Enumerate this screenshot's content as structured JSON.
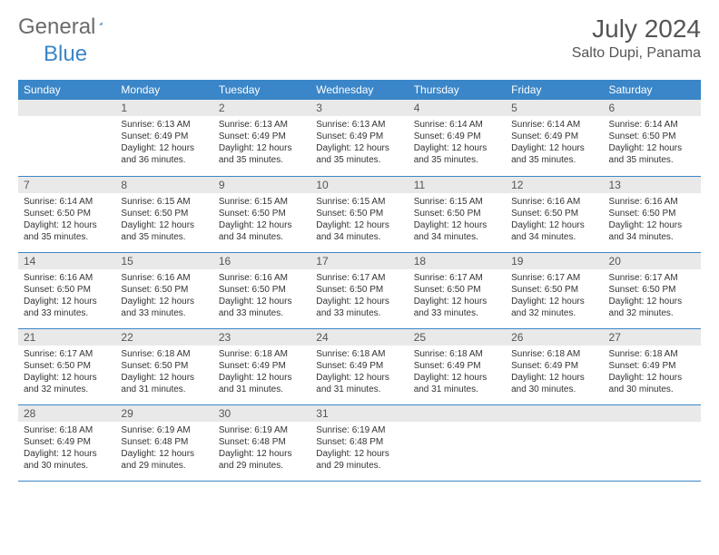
{
  "logo": {
    "general": "General",
    "blue": "Blue",
    "triangle_color": "#3a86c8"
  },
  "header": {
    "month_title": "July 2024",
    "location": "Salto Dupi, Panama"
  },
  "style": {
    "header_bg": "#3a86c8",
    "header_text": "#ffffff",
    "daynum_bg": "#e9e9e9",
    "border_color": "#3a86c8",
    "body_text": "#333333",
    "title_text": "#555555",
    "cell_font_size": 10,
    "daynum_font_size": 12,
    "dayheader_font_size": 12
  },
  "day_names": [
    "Sunday",
    "Monday",
    "Tuesday",
    "Wednesday",
    "Thursday",
    "Friday",
    "Saturday"
  ],
  "weeks": [
    [
      {
        "day": "",
        "sunrise": "",
        "sunset": "",
        "daylight": ""
      },
      {
        "day": "1",
        "sunrise": "Sunrise: 6:13 AM",
        "sunset": "Sunset: 6:49 PM",
        "daylight": "Daylight: 12 hours and 36 minutes."
      },
      {
        "day": "2",
        "sunrise": "Sunrise: 6:13 AM",
        "sunset": "Sunset: 6:49 PM",
        "daylight": "Daylight: 12 hours and 35 minutes."
      },
      {
        "day": "3",
        "sunrise": "Sunrise: 6:13 AM",
        "sunset": "Sunset: 6:49 PM",
        "daylight": "Daylight: 12 hours and 35 minutes."
      },
      {
        "day": "4",
        "sunrise": "Sunrise: 6:14 AM",
        "sunset": "Sunset: 6:49 PM",
        "daylight": "Daylight: 12 hours and 35 minutes."
      },
      {
        "day": "5",
        "sunrise": "Sunrise: 6:14 AM",
        "sunset": "Sunset: 6:49 PM",
        "daylight": "Daylight: 12 hours and 35 minutes."
      },
      {
        "day": "6",
        "sunrise": "Sunrise: 6:14 AM",
        "sunset": "Sunset: 6:50 PM",
        "daylight": "Daylight: 12 hours and 35 minutes."
      }
    ],
    [
      {
        "day": "7",
        "sunrise": "Sunrise: 6:14 AM",
        "sunset": "Sunset: 6:50 PM",
        "daylight": "Daylight: 12 hours and 35 minutes."
      },
      {
        "day": "8",
        "sunrise": "Sunrise: 6:15 AM",
        "sunset": "Sunset: 6:50 PM",
        "daylight": "Daylight: 12 hours and 35 minutes."
      },
      {
        "day": "9",
        "sunrise": "Sunrise: 6:15 AM",
        "sunset": "Sunset: 6:50 PM",
        "daylight": "Daylight: 12 hours and 34 minutes."
      },
      {
        "day": "10",
        "sunrise": "Sunrise: 6:15 AM",
        "sunset": "Sunset: 6:50 PM",
        "daylight": "Daylight: 12 hours and 34 minutes."
      },
      {
        "day": "11",
        "sunrise": "Sunrise: 6:15 AM",
        "sunset": "Sunset: 6:50 PM",
        "daylight": "Daylight: 12 hours and 34 minutes."
      },
      {
        "day": "12",
        "sunrise": "Sunrise: 6:16 AM",
        "sunset": "Sunset: 6:50 PM",
        "daylight": "Daylight: 12 hours and 34 minutes."
      },
      {
        "day": "13",
        "sunrise": "Sunrise: 6:16 AM",
        "sunset": "Sunset: 6:50 PM",
        "daylight": "Daylight: 12 hours and 34 minutes."
      }
    ],
    [
      {
        "day": "14",
        "sunrise": "Sunrise: 6:16 AM",
        "sunset": "Sunset: 6:50 PM",
        "daylight": "Daylight: 12 hours and 33 minutes."
      },
      {
        "day": "15",
        "sunrise": "Sunrise: 6:16 AM",
        "sunset": "Sunset: 6:50 PM",
        "daylight": "Daylight: 12 hours and 33 minutes."
      },
      {
        "day": "16",
        "sunrise": "Sunrise: 6:16 AM",
        "sunset": "Sunset: 6:50 PM",
        "daylight": "Daylight: 12 hours and 33 minutes."
      },
      {
        "day": "17",
        "sunrise": "Sunrise: 6:17 AM",
        "sunset": "Sunset: 6:50 PM",
        "daylight": "Daylight: 12 hours and 33 minutes."
      },
      {
        "day": "18",
        "sunrise": "Sunrise: 6:17 AM",
        "sunset": "Sunset: 6:50 PM",
        "daylight": "Daylight: 12 hours and 33 minutes."
      },
      {
        "day": "19",
        "sunrise": "Sunrise: 6:17 AM",
        "sunset": "Sunset: 6:50 PM",
        "daylight": "Daylight: 12 hours and 32 minutes."
      },
      {
        "day": "20",
        "sunrise": "Sunrise: 6:17 AM",
        "sunset": "Sunset: 6:50 PM",
        "daylight": "Daylight: 12 hours and 32 minutes."
      }
    ],
    [
      {
        "day": "21",
        "sunrise": "Sunrise: 6:17 AM",
        "sunset": "Sunset: 6:50 PM",
        "daylight": "Daylight: 12 hours and 32 minutes."
      },
      {
        "day": "22",
        "sunrise": "Sunrise: 6:18 AM",
        "sunset": "Sunset: 6:50 PM",
        "daylight": "Daylight: 12 hours and 31 minutes."
      },
      {
        "day": "23",
        "sunrise": "Sunrise: 6:18 AM",
        "sunset": "Sunset: 6:49 PM",
        "daylight": "Daylight: 12 hours and 31 minutes."
      },
      {
        "day": "24",
        "sunrise": "Sunrise: 6:18 AM",
        "sunset": "Sunset: 6:49 PM",
        "daylight": "Daylight: 12 hours and 31 minutes."
      },
      {
        "day": "25",
        "sunrise": "Sunrise: 6:18 AM",
        "sunset": "Sunset: 6:49 PM",
        "daylight": "Daylight: 12 hours and 31 minutes."
      },
      {
        "day": "26",
        "sunrise": "Sunrise: 6:18 AM",
        "sunset": "Sunset: 6:49 PM",
        "daylight": "Daylight: 12 hours and 30 minutes."
      },
      {
        "day": "27",
        "sunrise": "Sunrise: 6:18 AM",
        "sunset": "Sunset: 6:49 PM",
        "daylight": "Daylight: 12 hours and 30 minutes."
      }
    ],
    [
      {
        "day": "28",
        "sunrise": "Sunrise: 6:18 AM",
        "sunset": "Sunset: 6:49 PM",
        "daylight": "Daylight: 12 hours and 30 minutes."
      },
      {
        "day": "29",
        "sunrise": "Sunrise: 6:19 AM",
        "sunset": "Sunset: 6:48 PM",
        "daylight": "Daylight: 12 hours and 29 minutes."
      },
      {
        "day": "30",
        "sunrise": "Sunrise: 6:19 AM",
        "sunset": "Sunset: 6:48 PM",
        "daylight": "Daylight: 12 hours and 29 minutes."
      },
      {
        "day": "31",
        "sunrise": "Sunrise: 6:19 AM",
        "sunset": "Sunset: 6:48 PM",
        "daylight": "Daylight: 12 hours and 29 minutes."
      },
      {
        "day": "",
        "sunrise": "",
        "sunset": "",
        "daylight": ""
      },
      {
        "day": "",
        "sunrise": "",
        "sunset": "",
        "daylight": ""
      },
      {
        "day": "",
        "sunrise": "",
        "sunset": "",
        "daylight": ""
      }
    ]
  ]
}
